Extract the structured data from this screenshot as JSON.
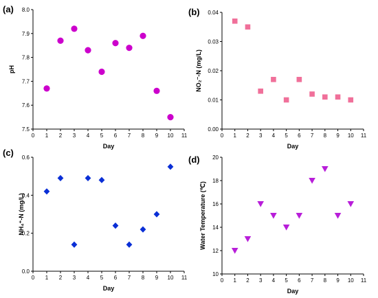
{
  "chart_data": [
    {
      "panel_label": "(a)",
      "type": "scatter",
      "xlabel": "Day",
      "ylabel": "pH",
      "xlim": [
        0,
        11
      ],
      "ylim": [
        7.5,
        8.0
      ],
      "xticks": [
        "0",
        "1",
        "2",
        "3",
        "4",
        "5",
        "6",
        "7",
        "8",
        "9",
        "10",
        "11"
      ],
      "yticks": [
        "7.5",
        "7.6",
        "7.7",
        "7.8",
        "7.9",
        "8.0"
      ],
      "marker": "circle",
      "color": "#cc00cc",
      "x": [
        1,
        2,
        3,
        4,
        5,
        6,
        7,
        8,
        9,
        10
      ],
      "y": [
        7.67,
        7.87,
        7.92,
        7.83,
        7.74,
        7.86,
        7.84,
        7.89,
        7.66,
        7.55
      ],
      "grid": false
    },
    {
      "panel_label": "(b)",
      "type": "scatter",
      "xlabel": "Day",
      "ylabel": "NO₂⁻-N (mg/L)",
      "xlim": [
        0,
        11
      ],
      "ylim": [
        0,
        0.04
      ],
      "xticks": [
        "0",
        "1",
        "2",
        "3",
        "4",
        "5",
        "6",
        "7",
        "8",
        "9",
        "10",
        "11"
      ],
      "yticks": [
        "0.00",
        "0.01",
        "0.02",
        "0.03",
        "0.04"
      ],
      "marker": "square",
      "color": "#f0709a",
      "x": [
        1,
        2,
        3,
        4,
        5,
        6,
        7,
        8,
        9,
        10
      ],
      "y": [
        0.037,
        0.035,
        0.013,
        0.017,
        0.01,
        0.017,
        0.012,
        0.011,
        0.011,
        0.01
      ],
      "grid": false
    },
    {
      "panel_label": "(c)",
      "type": "scatter",
      "xlabel": "Day",
      "ylabel": "NH₄⁺-N (mg/L)",
      "xlim": [
        0,
        11
      ],
      "ylim": [
        0,
        0.6
      ],
      "xticks": [
        "0",
        "1",
        "2",
        "3",
        "4",
        "5",
        "6",
        "7",
        "8",
        "9",
        "10",
        "11"
      ],
      "yticks": [
        "0.0",
        "0.2",
        "0.4",
        "0.6"
      ],
      "marker": "diamond",
      "color": "#0a2fd6",
      "x": [
        1,
        2,
        3,
        4,
        5,
        6,
        7,
        8,
        9,
        10
      ],
      "y": [
        0.42,
        0.49,
        0.14,
        0.49,
        0.48,
        0.24,
        0.14,
        0.22,
        0.3,
        0.55
      ],
      "grid": false
    },
    {
      "panel_label": "(d)",
      "type": "scatter",
      "xlabel": "Day",
      "ylabel": "Water Temperature (℃)",
      "xlim": [
        0,
        11
      ],
      "ylim": [
        10,
        20
      ],
      "xticks": [
        "0",
        "1",
        "2",
        "3",
        "4",
        "5",
        "6",
        "7",
        "8",
        "9",
        "10",
        "11"
      ],
      "yticks": [
        "10",
        "12",
        "14",
        "16",
        "18",
        "20"
      ],
      "marker": "triangle-down",
      "color": "#b81ed9",
      "x": [
        1,
        2,
        3,
        4,
        5,
        6,
        7,
        8,
        9,
        10
      ],
      "y": [
        12,
        13,
        16,
        15,
        14,
        15,
        18,
        19,
        15,
        16
      ],
      "grid": false
    }
  ]
}
